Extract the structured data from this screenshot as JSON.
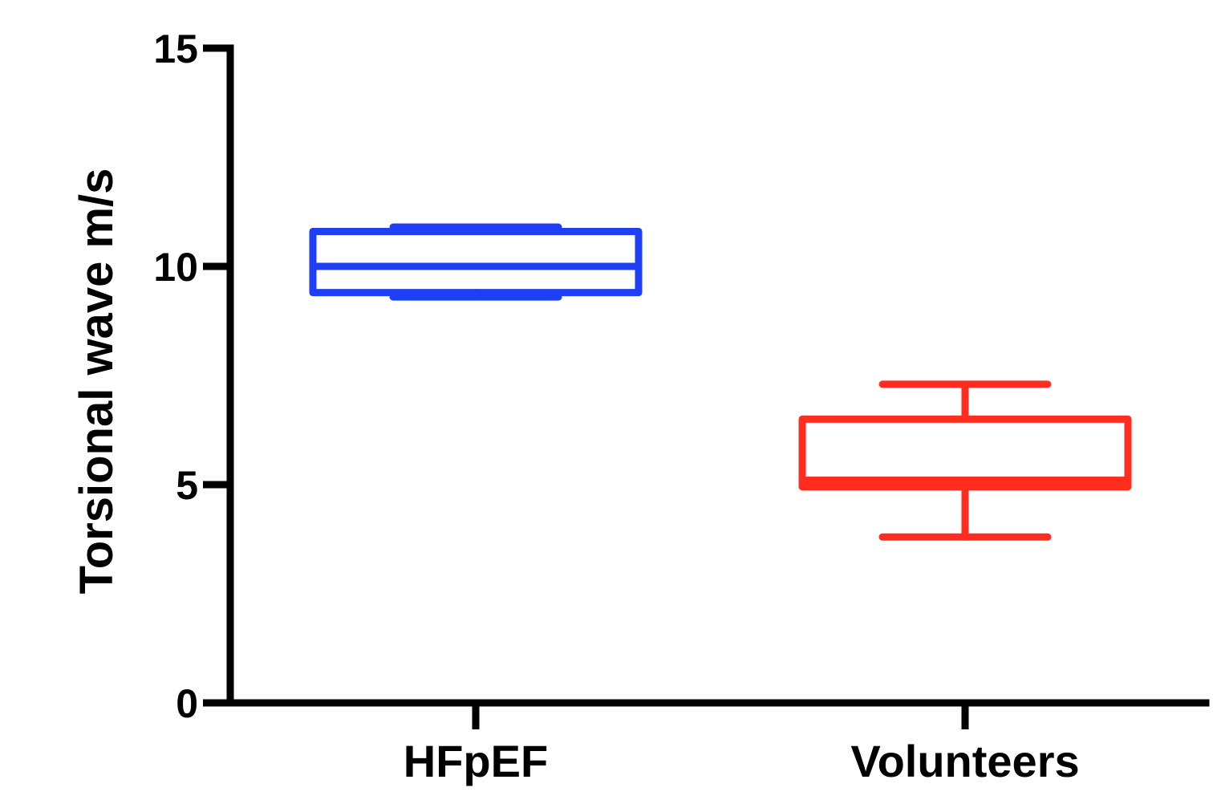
{
  "chart_data": {
    "type": "box",
    "title": "",
    "xlabel": "",
    "ylabel": "Torsional wave m/s",
    "ylim": [
      0,
      15
    ],
    "yticks": [
      0,
      5,
      10,
      15
    ],
    "grid": false,
    "legend": "none",
    "categories": [
      "HFpEF",
      "Volunteers"
    ],
    "series": [
      {
        "category": "HFpEF",
        "color": "#1f3ff5",
        "min": 9.3,
        "q1": 9.4,
        "median": 10.0,
        "q3": 10.8,
        "max": 10.9
      },
      {
        "category": "Volunteers",
        "color": "#ff2d1f",
        "min": 3.8,
        "q1": 4.95,
        "median": 5.1,
        "q3": 6.5,
        "max": 7.3
      }
    ]
  }
}
